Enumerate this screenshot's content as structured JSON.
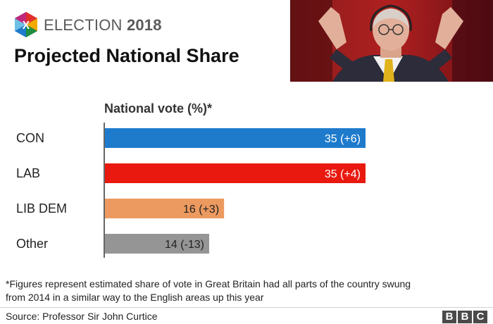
{
  "header": {
    "brand": "ELECTION",
    "year": "2018",
    "title": "Projected National Share"
  },
  "chart_data": {
    "type": "bar",
    "orientation": "horizontal",
    "subtitle": "National vote (%)*",
    "categories": [
      "CON",
      "LAB",
      "LIB DEM",
      "Other"
    ],
    "values": [
      35,
      35,
      16,
      14
    ],
    "changes": [
      6,
      4,
      3,
      -13
    ],
    "labels": [
      "35 (+6)",
      "35 (+4)",
      "16 (+3)",
      "14 (-13)"
    ],
    "colors": [
      "#1e7bcc",
      "#e9190f",
      "#ec9a5f",
      "#959595"
    ],
    "label_colors": [
      "#ffffff",
      "#ffffff",
      "#222222",
      "#222222"
    ],
    "xlim": [
      0,
      35
    ],
    "grid": false,
    "legend": "none"
  },
  "footnote": "*Figures represent estimated share of vote in Great Britain had all parts of the country swung from 2014 in a similar way to the English areas up this year",
  "source": "Source: Professor Sir John Curtice",
  "bbc_letters": [
    "B",
    "B",
    "C"
  ],
  "icons": [
    "election-x-icon",
    "presenter-photo"
  ]
}
